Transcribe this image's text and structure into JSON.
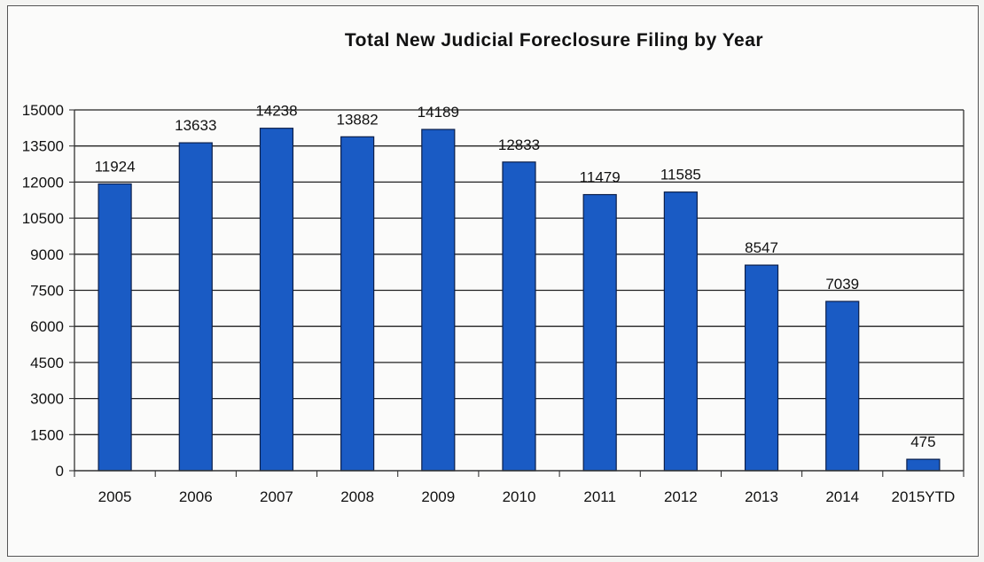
{
  "chart_data": {
    "type": "bar",
    "title": "Total New Judicial Foreclosure Filing by Year",
    "categories": [
      "2005",
      "2006",
      "2007",
      "2008",
      "2009",
      "2010",
      "2011",
      "2012",
      "2013",
      "2014",
      "2015YTD"
    ],
    "values": [
      11924,
      13633,
      14238,
      13882,
      14189,
      12833,
      11479,
      11585,
      8547,
      7039,
      475
    ],
    "data_labels": [
      "11924",
      "13633",
      "14238",
      "13882",
      "14189",
      "12833",
      "11479",
      "11585",
      "8547",
      "7039",
      "475"
    ],
    "y_ticks": [
      "0",
      "1500",
      "3000",
      "4500",
      "6000",
      "7500",
      "9000",
      "10500",
      "12000",
      "13500",
      "15000"
    ],
    "ylim": [
      0,
      15000
    ],
    "y_step": 1500,
    "grid": true,
    "legend": "none",
    "colors": {
      "bar": "#1a5bc4",
      "bar_edge": "#0b1f4a",
      "grid": "#222222",
      "plot_border": "#333333",
      "text": "#111111"
    }
  }
}
